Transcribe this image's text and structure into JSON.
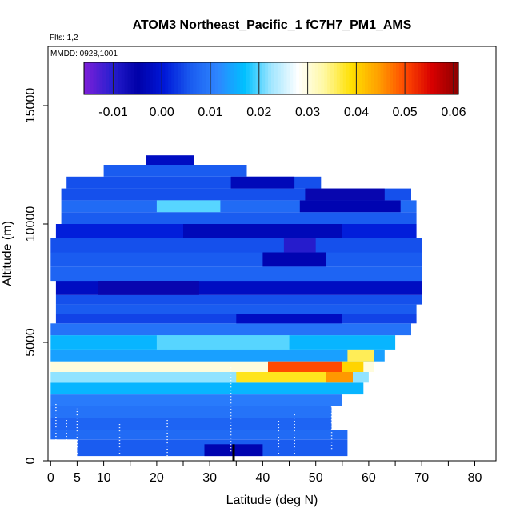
{
  "chart_data": {
    "type": "heatmap",
    "title": "ATOM3 Northeast_Pacific_1 fC7H7_PM1_AMS",
    "flights_label": "Flts: 1,2",
    "dates_label": "MMDD: 0928,1001",
    "xlabel": "Latitude (deg N)",
    "ylabel": "Altitude (m)",
    "xlim": [
      -0.5,
      84
    ],
    "ylim": [
      0,
      17500
    ],
    "x_ticks": [
      0,
      5,
      10,
      20,
      30,
      40,
      50,
      60,
      70,
      80
    ],
    "x_tick_labels": [
      "0",
      "5",
      "10",
      "20",
      "30",
      "40",
      "50",
      "60",
      "70",
      "80"
    ],
    "y_ticks": [
      0,
      5000,
      10000,
      15000
    ],
    "y_tick_labels": [
      "0",
      "5000",
      "10000",
      "15000"
    ],
    "colorbar": {
      "min": -0.016,
      "max": 0.061,
      "ticks": [
        -0.01,
        0.0,
        0.01,
        0.02,
        0.03,
        0.04,
        0.05,
        0.06
      ],
      "tick_labels": [
        "-0.01",
        "0.00",
        "0.01",
        "0.02",
        "0.03",
        "0.04",
        "0.05",
        "0.06"
      ],
      "colors": [
        "#7f1fd9",
        "#2a1fd0",
        "#0000a8",
        "#0018d8",
        "#1a5cf0",
        "#2e86ff",
        "#00c0ff",
        "#a0e6ff",
        "#ffffff",
        "#fff8a0",
        "#ffe000",
        "#ffa000",
        "#ff4a00",
        "#d80000",
        "#8a0000"
      ]
    },
    "rows": [
      {
        "alt": [
          200,
          900
        ],
        "lat": [
          5,
          56
        ],
        "value": 0.006
      },
      {
        "alt": [
          900,
          1300
        ],
        "lat": [
          0,
          56
        ],
        "value": 0.008
      },
      {
        "alt": [
          1300,
          1800
        ],
        "lat": [
          0,
          53
        ],
        "value": 0.007
      },
      {
        "alt": [
          1800,
          2300
        ],
        "lat": [
          0,
          53
        ],
        "value": 0.009
      },
      {
        "alt": [
          2300,
          2800
        ],
        "lat": [
          0,
          55
        ],
        "value": 0.01
      },
      {
        "alt": [
          2800,
          3300
        ],
        "lat": [
          0,
          59
        ],
        "value": 0.016
      },
      {
        "alt": [
          3300,
          3750
        ],
        "lat": [
          0,
          60
        ],
        "value": 0.022
      },
      {
        "alt": [
          3750,
          4200
        ],
        "lat": [
          0,
          61
        ],
        "value": 0.03
      },
      {
        "alt": [
          4200,
          4700
        ],
        "lat": [
          0,
          63
        ],
        "value": 0.014
      },
      {
        "alt": [
          4700,
          5300
        ],
        "lat": [
          0,
          65
        ],
        "value": 0.016
      },
      {
        "alt": [
          5300,
          5800
        ],
        "lat": [
          0,
          68
        ],
        "value": 0.009
      },
      {
        "alt": [
          5800,
          6200
        ],
        "lat": [
          1,
          69
        ],
        "value": 0.004
      },
      {
        "alt": [
          6200,
          6600
        ],
        "lat": [
          1,
          69
        ],
        "value": 0.006
      },
      {
        "alt": [
          6600,
          7000
        ],
        "lat": [
          1,
          70
        ],
        "value": 0.005
      },
      {
        "alt": [
          7000,
          7600
        ],
        "lat": [
          1,
          70
        ],
        "value": -0.002
      },
      {
        "alt": [
          7600,
          8200
        ],
        "lat": [
          0,
          70
        ],
        "value": 0.007
      },
      {
        "alt": [
          8200,
          8800
        ],
        "lat": [
          0,
          70
        ],
        "value": 0.006
      },
      {
        "alt": [
          8800,
          9400
        ],
        "lat": [
          0,
          70
        ],
        "value": 0.005
      },
      {
        "alt": [
          9400,
          10000
        ],
        "lat": [
          1,
          69
        ],
        "value": 0.001
      },
      {
        "alt": [
          10000,
          10500
        ],
        "lat": [
          2,
          69
        ],
        "value": 0.006
      },
      {
        "alt": [
          10500,
          11000
        ],
        "lat": [
          2,
          69
        ],
        "value": 0.008
      },
      {
        "alt": [
          11000,
          11500
        ],
        "lat": [
          2,
          68
        ],
        "value": 0.005
      },
      {
        "alt": [
          11500,
          12000
        ],
        "lat": [
          3,
          51
        ],
        "value": 0.005
      },
      {
        "alt": [
          12000,
          12500
        ],
        "lat": [
          10,
          37
        ],
        "value": 0.006
      },
      {
        "alt": [
          12500,
          12900
        ],
        "lat": [
          18,
          27
        ],
        "value": -0.002
      }
    ],
    "patches": [
      {
        "alt": [
          200,
          700
        ],
        "lat": [
          29,
          40
        ],
        "value": -0.004
      },
      {
        "alt": [
          3300,
          3750
        ],
        "lat": [
          35,
          52
        ],
        "value": 0.038
      },
      {
        "alt": [
          3300,
          3750
        ],
        "lat": [
          52,
          57
        ],
        "value": 0.045
      },
      {
        "alt": [
          3750,
          4200
        ],
        "lat": [
          41,
          55
        ],
        "value": 0.05
      },
      {
        "alt": [
          3750,
          4200
        ],
        "lat": [
          55,
          59
        ],
        "value": 0.04
      },
      {
        "alt": [
          4200,
          4700
        ],
        "lat": [
          56,
          61
        ],
        "value": 0.036
      },
      {
        "alt": [
          4700,
          5300
        ],
        "lat": [
          20,
          45
        ],
        "value": 0.02
      },
      {
        "alt": [
          5800,
          6200
        ],
        "lat": [
          35,
          55
        ],
        "value": -0.002
      },
      {
        "alt": [
          7000,
          7600
        ],
        "lat": [
          9,
          28
        ],
        "value": -0.006
      },
      {
        "alt": [
          8200,
          8800
        ],
        "lat": [
          40,
          52
        ],
        "value": -0.004
      },
      {
        "alt": [
          8800,
          9400
        ],
        "lat": [
          44,
          50
        ],
        "value": -0.01
      },
      {
        "alt": [
          9400,
          10000
        ],
        "lat": [
          25,
          55
        ],
        "value": -0.003
      },
      {
        "alt": [
          10500,
          11000
        ],
        "lat": [
          20,
          32
        ],
        "value": 0.02
      },
      {
        "alt": [
          10500,
          11000
        ],
        "lat": [
          47,
          66
        ],
        "value": -0.004
      },
      {
        "alt": [
          11000,
          11500
        ],
        "lat": [
          48,
          63
        ],
        "value": -0.006
      },
      {
        "alt": [
          11500,
          12000
        ],
        "lat": [
          34,
          46
        ],
        "value": -0.003
      }
    ]
  }
}
